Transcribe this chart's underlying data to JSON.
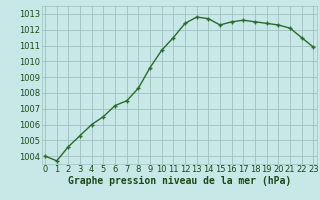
{
  "x": [
    0,
    1,
    2,
    3,
    4,
    5,
    6,
    7,
    8,
    9,
    10,
    11,
    12,
    13,
    14,
    15,
    16,
    17,
    18,
    19,
    20,
    21,
    22,
    23
  ],
  "y": [
    1004.0,
    1003.7,
    1004.6,
    1005.3,
    1006.0,
    1006.5,
    1007.2,
    1007.5,
    1008.3,
    1009.6,
    1010.7,
    1011.5,
    1012.4,
    1012.8,
    1012.7,
    1012.3,
    1012.5,
    1012.6,
    1012.5,
    1012.4,
    1012.3,
    1012.1,
    1011.5,
    1010.9
  ],
  "line_color": "#2d6a2d",
  "marker": "+",
  "bg_color": "#c8e8e8",
  "grid_color": "#a0c0c0",
  "xlabel": "Graphe pression niveau de la mer (hPa)",
  "xlabel_fontsize": 7,
  "xlabel_color": "#1a4a1a",
  "tick_color": "#1a4a1a",
  "tick_fontsize": 6,
  "ylim": [
    1003.5,
    1013.5
  ],
  "yticks": [
    1004,
    1005,
    1006,
    1007,
    1008,
    1009,
    1010,
    1011,
    1012,
    1013
  ],
  "xticks": [
    0,
    1,
    2,
    3,
    4,
    5,
    6,
    7,
    8,
    9,
    10,
    11,
    12,
    13,
    14,
    15,
    16,
    17,
    18,
    19,
    20,
    21,
    22,
    23
  ],
  "xlim": [
    -0.3,
    23.3
  ],
  "linewidth": 1.0,
  "markersize": 3.5,
  "markeredgewidth": 1.0
}
